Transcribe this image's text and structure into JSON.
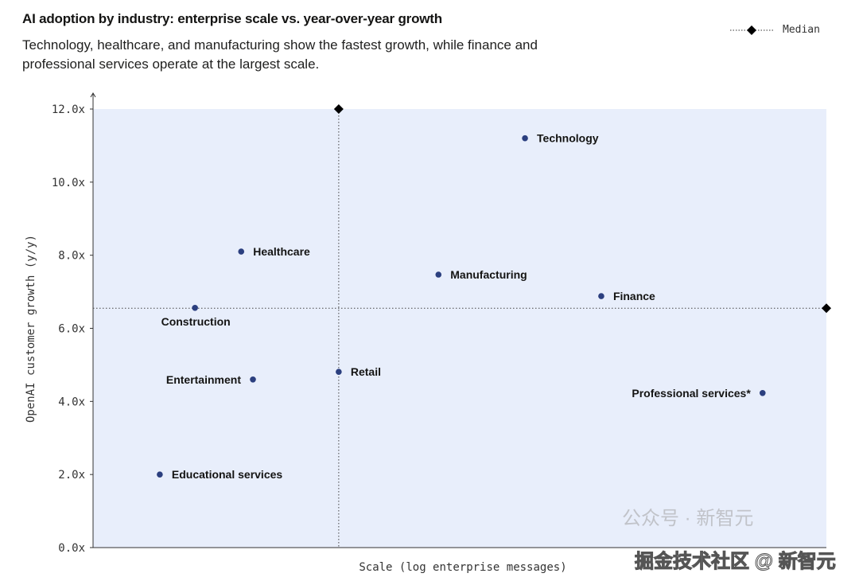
{
  "chart_data": {
    "type": "scatter",
    "title": "AI adoption by industry: enterprise scale vs. year-over-year growth",
    "subtitle": "Technology, healthcare, and manufacturing show the fastest growth, while finance and professional services operate at the largest scale.",
    "xlabel": "Scale (log enterprise messages)",
    "ylabel": "OpenAI customer growth (y/y)",
    "x_scale": "log, relative position (0 = lowest shown, 1 = highest shown), no tick labels",
    "xlim": [
      0,
      1
    ],
    "ylim": [
      0,
      12
    ],
    "yticks": [
      "0.0x",
      "2.0x",
      "4.0x",
      "6.0x",
      "8.0x",
      "10.0x",
      "12.0x"
    ],
    "ytick_values": [
      0,
      2,
      4,
      6,
      8,
      10,
      12
    ],
    "grid": false,
    "legend": {
      "label": "Median",
      "placement": "top-right"
    },
    "median": {
      "x": 0.335,
      "y": 6.55
    },
    "points": [
      {
        "label": "Technology",
        "x": 0.589,
        "y": 11.2,
        "label_side": "right"
      },
      {
        "label": "Healthcare",
        "x": 0.202,
        "y": 8.1,
        "label_side": "right"
      },
      {
        "label": "Manufacturing",
        "x": 0.471,
        "y": 7.47,
        "label_side": "right"
      },
      {
        "label": "Finance",
        "x": 0.693,
        "y": 6.88,
        "label_side": "right"
      },
      {
        "label": "Construction",
        "x": 0.139,
        "y": 6.56,
        "label_side": "below"
      },
      {
        "label": "Retail",
        "x": 0.335,
        "y": 4.81,
        "label_side": "right"
      },
      {
        "label": "Entertainment",
        "x": 0.218,
        "y": 4.6,
        "label_side": "left"
      },
      {
        "label": "Professional services*",
        "x": 0.913,
        "y": 4.23,
        "label_side": "left"
      },
      {
        "label": "Educational services",
        "x": 0.091,
        "y": 2.0,
        "label_side": "right"
      }
    ],
    "colors": {
      "point": "#2b3f7f",
      "plot_bg": "#e8eefb",
      "median": "#000000"
    }
  },
  "watermark": {
    "line1": "公众号 · 新智元",
    "line2": "掘金技术社区 @ 新智元"
  }
}
